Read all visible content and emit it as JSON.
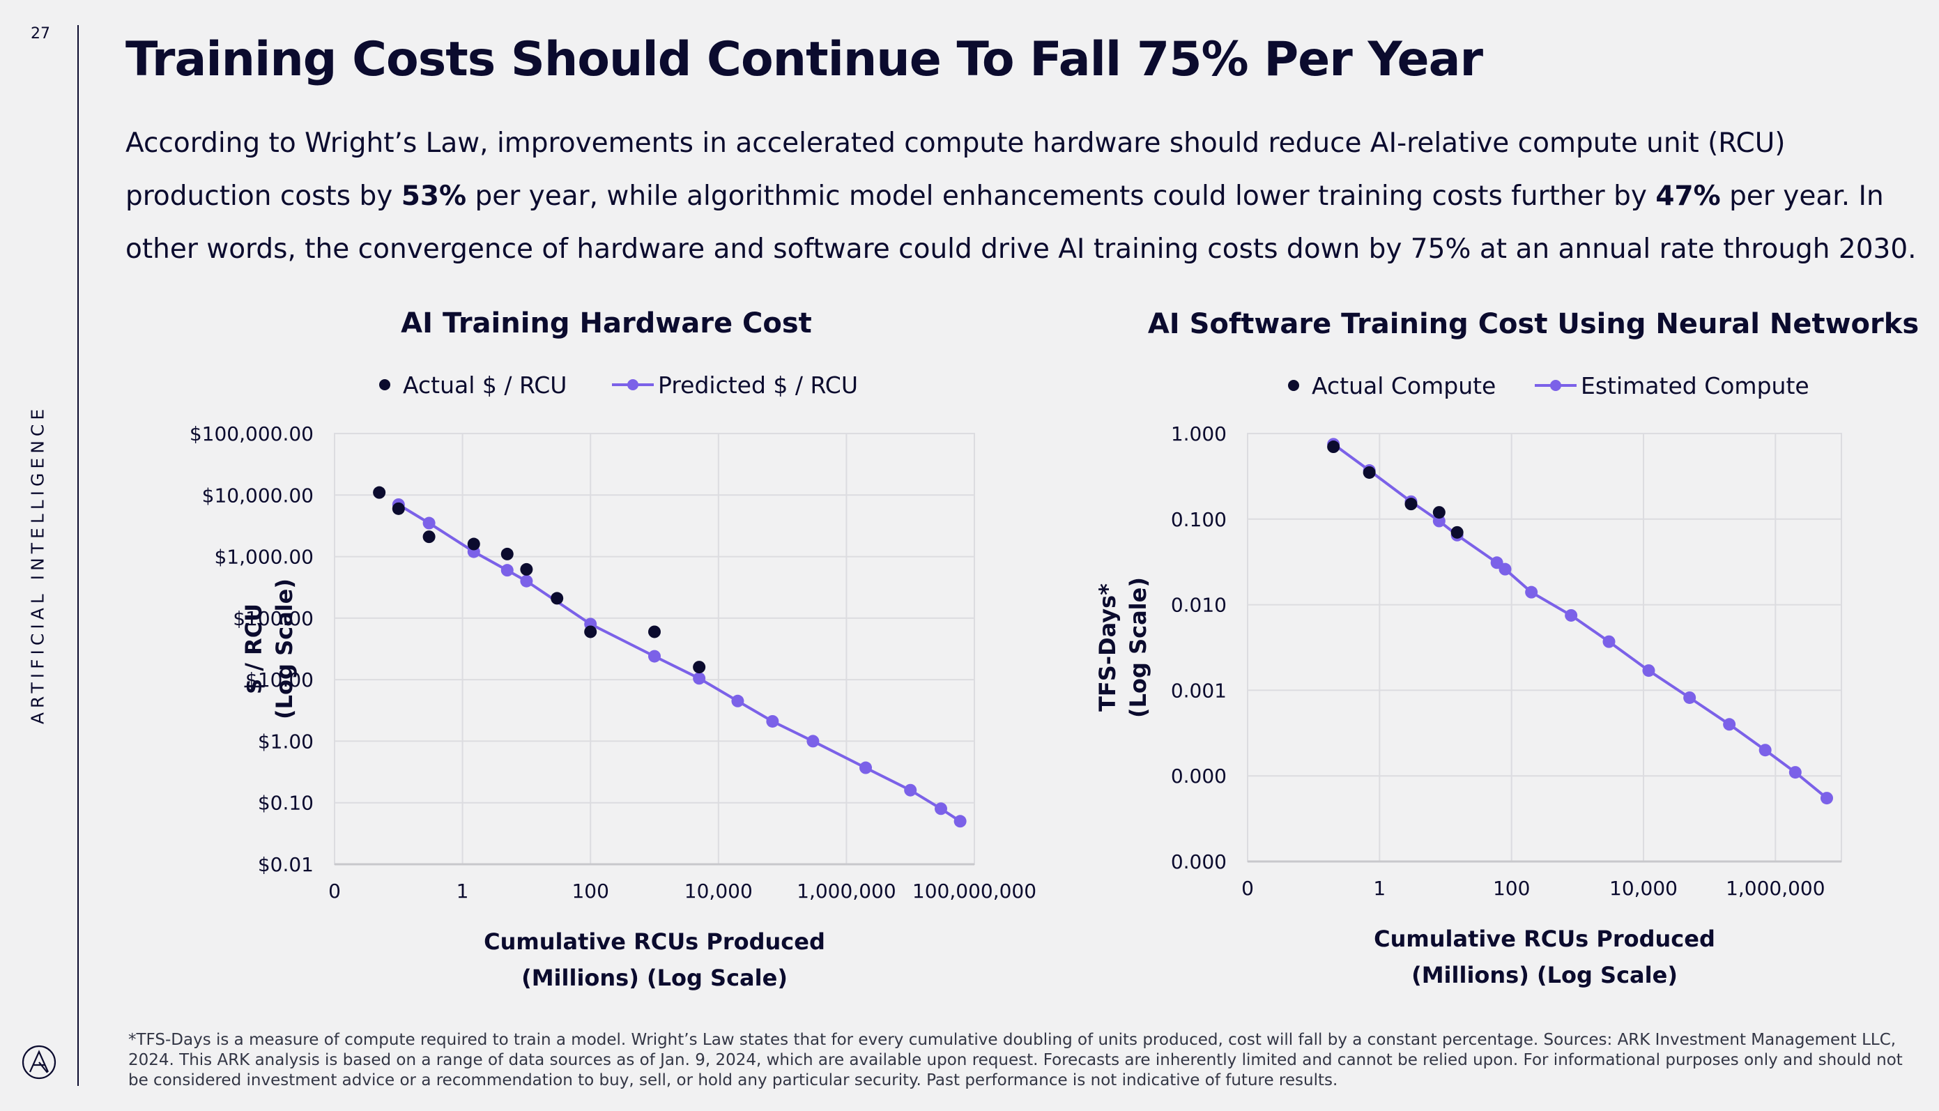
{
  "page": {
    "number": "27",
    "section_label": "ARTIFICIAL INTELLIGENCE",
    "title": "Training Costs Should Continue To Fall 75% Per Year",
    "intro": {
      "part1": "According to Wright’s Law, improvements in accelerated compute hardware should reduce AI-relative compute unit (RCU) production costs by ",
      "bold1": "53%",
      "part2": " per year, while algorithmic model enhancements could lower training costs further by ",
      "bold2": "47%",
      "part3": " per year. In other words, the convergence of hardware and software could drive AI training costs down by 75% at an annual rate through 2030."
    },
    "footnote": "*TFS-Days is a measure of compute required to train a model. Wright’s Law states that for every cumulative doubling of units produced, cost will fall by a constant percentage. Sources: ARK Investment Management LLC, 2024. This ARK analysis is based on a range of data sources as of Jan. 9, 2024, which are available upon request. Forecasts are inherently limited and cannot be relied upon. For informational purposes only and should not be considered investment advice or a recommendation to buy, sell, or hold any particular security. Past performance is not indicative of future results."
  },
  "colors": {
    "actual": "#0b0b2e",
    "predicted": "#7b61e8",
    "grid": "#dcdce0",
    "axis": "#c8c8cc",
    "text": "#0b0b2e"
  },
  "chart_data": [
    {
      "type": "scatter",
      "title": "AI Training Hardware Cost",
      "xlabel": [
        "Cumulative RCUs Produced",
        "(Millions) (Log Scale)"
      ],
      "ylabel": [
        "$ / RCU",
        "(Log Scale)"
      ],
      "x_scale": "log",
      "y_scale": "log",
      "xlim": [
        0.01,
        100000000
      ],
      "ylim": [
        0.01,
        100000
      ],
      "x_ticks": [
        0.01,
        1,
        100,
        10000,
        1000000,
        100000000
      ],
      "x_tick_labels": [
        "0",
        "1",
        "100",
        "10,000",
        "1,000,000",
        "100,000,000"
      ],
      "y_ticks": [
        100000,
        10000,
        1000,
        100,
        10,
        1,
        0.1,
        0.01
      ],
      "y_tick_labels": [
        "$100,000.00",
        "$10,000.00",
        "$1,000.00",
        "$100.00",
        "$10.00",
        "$1.00",
        "$0.10",
        "$0.01"
      ],
      "grid": true,
      "legend_position": "top",
      "series": [
        {
          "name": "Actual $ / RCU",
          "style": "markers",
          "points": [
            [
              0.05,
              11000
            ],
            [
              0.1,
              6000
            ],
            [
              0.3,
              2100
            ],
            [
              1.5,
              1600
            ],
            [
              5,
              1100
            ],
            [
              10,
              620
            ],
            [
              30,
              210
            ],
            [
              100,
              60
            ],
            [
              1000,
              60
            ],
            [
              5000,
              16
            ]
          ]
        },
        {
          "name": "Predicted $ / RCU",
          "style": "line-markers",
          "points": [
            [
              0.1,
              7000
            ],
            [
              0.3,
              3500
            ],
            [
              1.5,
              1200
            ],
            [
              5,
              600
            ],
            [
              10,
              400
            ],
            [
              100,
              80
            ],
            [
              1000,
              24
            ],
            [
              5000,
              10.5
            ],
            [
              20000,
              4.5
            ],
            [
              70000,
              2.1
            ],
            [
              300000,
              1.0
            ],
            [
              2000000,
              0.37
            ],
            [
              10000000,
              0.16
            ],
            [
              30000000,
              0.08
            ],
            [
              60000000,
              0.05
            ]
          ]
        }
      ]
    },
    {
      "type": "scatter",
      "title": "AI Software Training Cost Using Neural Networks",
      "xlabel": [
        "Cumulative RCUs Produced",
        "(Millions) (Log Scale)"
      ],
      "ylabel": [
        "TFS-Days*",
        "(Log Scale)"
      ],
      "x_scale": "log",
      "y_scale": "log",
      "xlim": [
        0.01,
        10000000
      ],
      "ylim": [
        1e-05,
        1
      ],
      "x_ticks": [
        0.01,
        1,
        100,
        10000,
        1000000
      ],
      "x_tick_labels": [
        "0",
        "1",
        "100",
        "10,000",
        "1,000,000"
      ],
      "y_ticks": [
        1,
        0.1,
        0.01,
        0.001,
        0.0001,
        1e-05
      ],
      "y_tick_labels": [
        "1.000",
        "0.100",
        "0.010",
        "0.001",
        "0.000",
        "0.000"
      ],
      "grid": true,
      "legend_position": "top",
      "series": [
        {
          "name": "Actual Compute",
          "style": "markers",
          "points": [
            [
              0.2,
              0.7
            ],
            [
              0.7,
              0.35
            ],
            [
              3,
              0.15
            ],
            [
              8,
              0.12
            ],
            [
              15,
              0.07
            ]
          ]
        },
        {
          "name": "Estimated Compute",
          "style": "line-markers",
          "points": [
            [
              0.2,
              0.75
            ],
            [
              0.7,
              0.37
            ],
            [
              3,
              0.16
            ],
            [
              8,
              0.095
            ],
            [
              15,
              0.065
            ],
            [
              60,
              0.031
            ],
            [
              80,
              0.026
            ],
            [
              200,
              0.014
            ],
            [
              800,
              0.0075
            ],
            [
              3000,
              0.0037
            ],
            [
              12000,
              0.0017
            ],
            [
              50000,
              0.00082
            ],
            [
              200000,
              0.0004
            ],
            [
              700000,
              0.0002
            ],
            [
              2000000,
              0.00011
            ],
            [
              6000000,
              5.5e-05
            ]
          ]
        }
      ]
    }
  ]
}
